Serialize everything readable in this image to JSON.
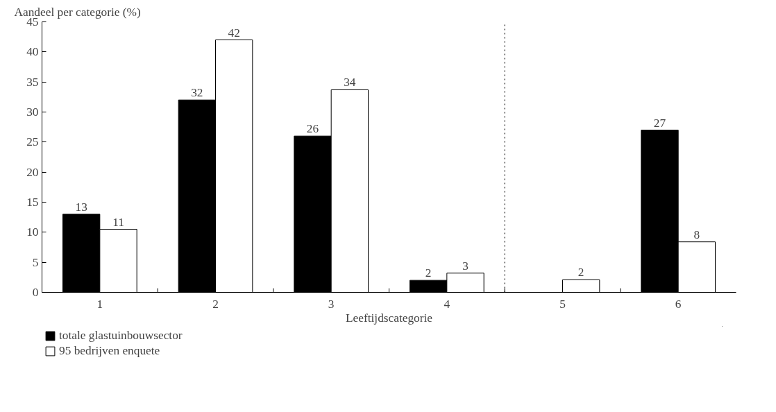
{
  "chart_data": {
    "type": "bar",
    "ylabel": "Aandeel per categorie (%)",
    "xlabel": "Leeftijdscategorie",
    "x": [
      1,
      2,
      3,
      4,
      5,
      6
    ],
    "xlim": [
      0.5,
      6.5
    ],
    "xticks": [
      1,
      2,
      3,
      4,
      5,
      6,
      {
        "value": 1.5,
        "label": null
      },
      {
        "value": 2.5,
        "label": null
      },
      {
        "value": 3.5,
        "label": null
      },
      {
        "value": 4.5,
        "label": null
      },
      {
        "value": 5.5,
        "label": null
      }
    ],
    "ylim": [
      0,
      45
    ],
    "yticks": [
      0,
      5,
      10,
      15,
      20,
      25,
      30,
      35,
      40,
      45
    ],
    "series": [
      {
        "name": "totale glastuinbouwsector",
        "color": "#000000",
        "values": [
          13,
          32,
          26,
          2,
          null,
          27
        ],
        "value_labels": [
          "13",
          "32",
          "26",
          "2",
          null,
          "27"
        ]
      },
      {
        "name": "95 bedrijven enquete",
        "color": "#ffffff",
        "values": [
          10.5,
          42,
          33.7,
          3.2,
          2.1,
          8.4
        ],
        "value_labels": [
          "11",
          "42",
          "34",
          "3",
          "2",
          "8"
        ]
      }
    ],
    "ref_lines": [
      {
        "axis": "x",
        "value": 4.5,
        "label": null,
        "line_style": "dotted",
        "color": "#000000"
      }
    ],
    "grid": false,
    "legend": "bottom left"
  }
}
